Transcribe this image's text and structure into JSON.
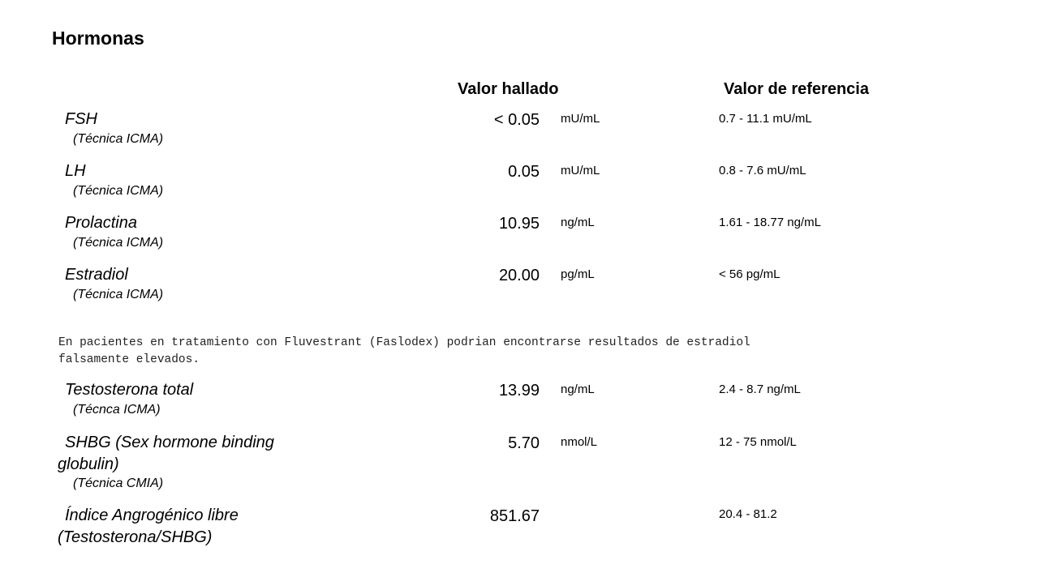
{
  "section_title": "Hormonas",
  "headers": {
    "value": "Valor hallado",
    "reference": "Valor de referencia"
  },
  "rows": [
    {
      "name": "FSH",
      "technique": "(Técnica ICMA)",
      "value": "< 0.05",
      "unit": "mU/mL",
      "reference": "0.7 - 11.1 mU/mL"
    },
    {
      "name": "LH",
      "technique": "(Técnica ICMA)",
      "value": "0.05",
      "unit": "mU/mL",
      "reference": "0.8 - 7.6 mU/mL"
    },
    {
      "name": "Prolactina",
      "technique": "(Técnica ICMA)",
      "value": "10.95",
      "unit": "ng/mL",
      "reference": "1.61 - 18.77 ng/mL"
    },
    {
      "name": "Estradiol",
      "technique": "(Técnica ICMA)",
      "value": "20.00",
      "unit": "pg/mL",
      "reference": "< 56 pg/mL"
    },
    {
      "name": "Testosterona total",
      "technique": "(Técnca ICMA)",
      "value": "13.99",
      "unit": "ng/mL",
      "reference": "2.4 - 8.7 ng/mL"
    },
    {
      "name": "SHBG (Sex hormone binding",
      "name_line2": "globulin)",
      "technique": "(Técnica CMIA)",
      "value": "5.70",
      "unit": "nmol/L",
      "reference": "12 - 75 nmol/L"
    },
    {
      "name": "Índice Angrogénico libre",
      "name_line2": "(Testosterona/SHBG)",
      "value": "851.67",
      "reference": "20.4 - 81.2"
    }
  ],
  "note": {
    "line1": " En pacientes en tratamiento con Fluvestrant (Faslodex) podrian encontrarse resultados de estradiol",
    "line2": "falsamente elevados."
  }
}
